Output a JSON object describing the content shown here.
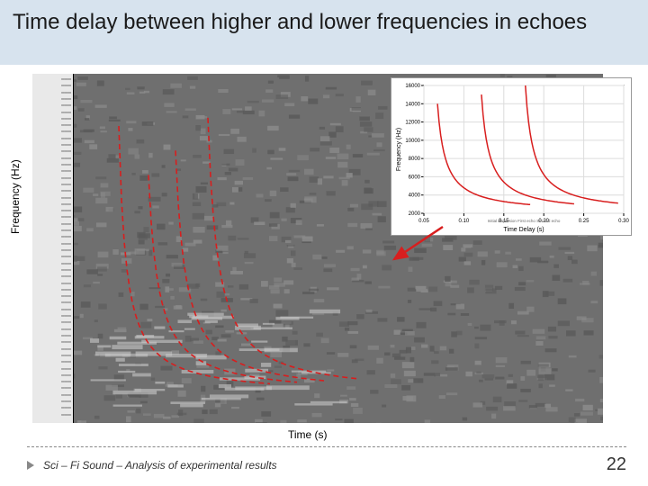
{
  "title": "Time delay between higher and lower frequencies in echoes",
  "ylabel": "Frequency (Hz)",
  "xlabel": "Time (s)",
  "footer_text": "Sci – Fi Sound – Analysis of experimental results",
  "page_number": "22",
  "spectrogram": {
    "bg_color": "#6f6f6f",
    "noise_dark": "#5a5a5a",
    "noise_light": "#8a8a8a",
    "curve_color": "#d81e1e",
    "curve_dash": "6,4",
    "curve_width": 1.6,
    "curves": [
      {
        "x0": 96,
        "freq0": 360,
        "k": 2400
      },
      {
        "x0": 126,
        "freq0": 360,
        "k": 2700
      },
      {
        "x0": 156,
        "freq0": 360,
        "k": 3000
      },
      {
        "x0": 192,
        "freq0": 360,
        "k": 3400
      }
    ],
    "axis_blur_lines": 52
  },
  "inset": {
    "bg": "#ffffff",
    "border": "#999999",
    "plot_border": "#000000",
    "grid_color": "#dcdcdc",
    "axis_font": 6,
    "curve_color": "#d81e1e",
    "curve_width": 1.5,
    "title_y": "Frequency (Hz)",
    "title_x": "Time Delay (s)",
    "ylim": [
      2000,
      16000
    ],
    "ytick_step": 2000,
    "xlim": [
      0.05,
      0.3
    ],
    "xticks": [
      0.05,
      0.1,
      0.15,
      0.2,
      0.25,
      0.3
    ],
    "legend": [
      "Initial dispersion",
      "First echo",
      "Second echo"
    ],
    "curves": [
      {
        "x0": 0.065,
        "k": 120
      },
      {
        "x0": 0.12,
        "k": 130
      },
      {
        "x0": 0.175,
        "k": 140
      }
    ]
  },
  "arrow_color": "#d81e1e"
}
